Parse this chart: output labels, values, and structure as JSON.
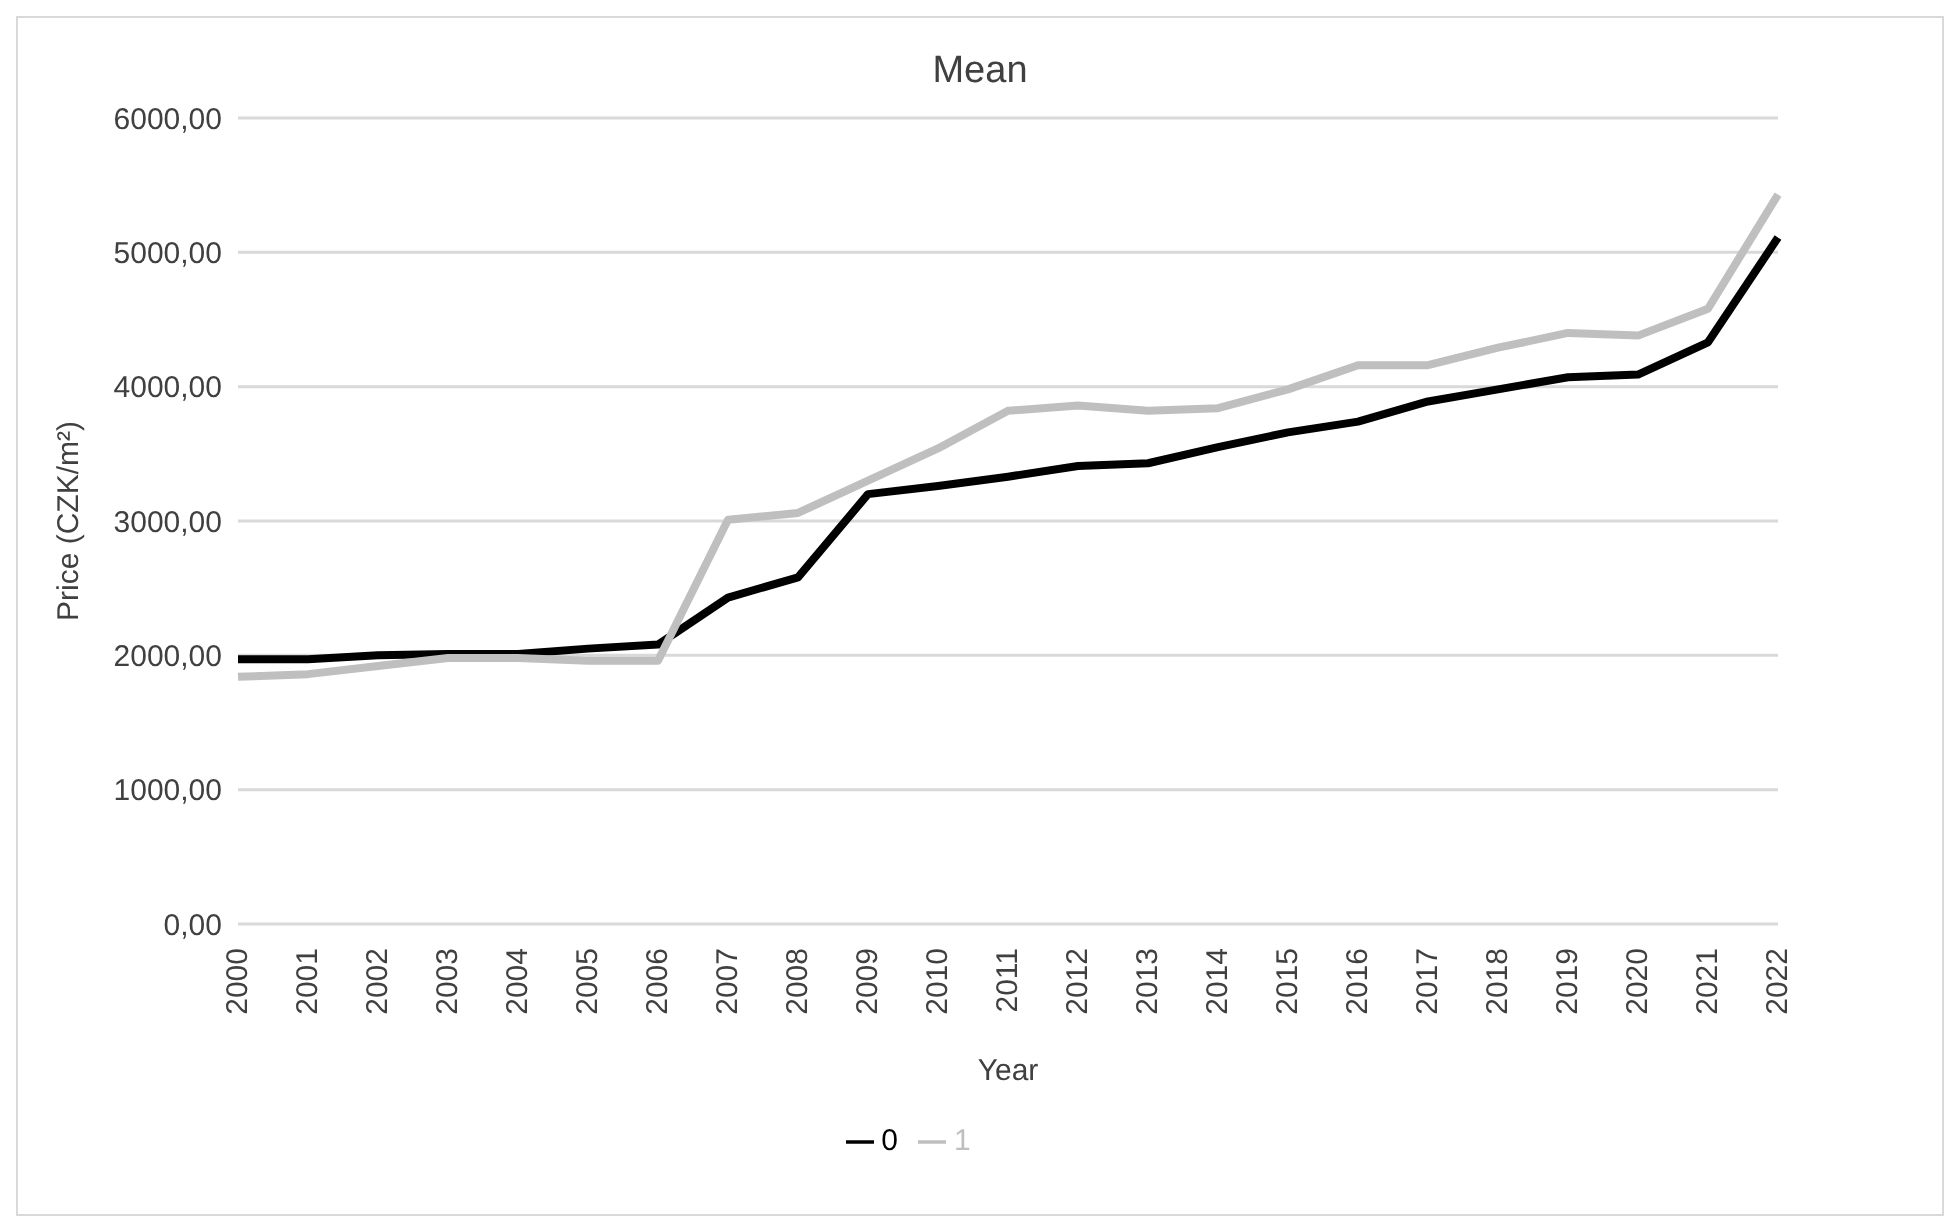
{
  "chart_data": {
    "type": "line",
    "title": "Mean",
    "xlabel": "Year",
    "ylabel": "Price (CZK/m²)",
    "categories": [
      "2000",
      "2001",
      "2002",
      "2003",
      "2004",
      "2005",
      "2006",
      "2007",
      "2008",
      "2009",
      "2010",
      "2011",
      "2012",
      "2013",
      "2014",
      "2015",
      "2016",
      "2017",
      "2018",
      "2019",
      "2020",
      "2021",
      "2022"
    ],
    "series": [
      {
        "name": "0",
        "color": "#000000",
        "values": [
          1970,
          1970,
          2000,
          2010,
          2010,
          2050,
          2080,
          2430,
          2580,
          3200,
          3260,
          3330,
          3410,
          3430,
          3550,
          3660,
          3740,
          3890,
          3980,
          4070,
          4090,
          4330,
          5110
        ]
      },
      {
        "name": "1",
        "color": "#bfbfbf",
        "values": [
          1840,
          1860,
          1920,
          1980,
          1980,
          1960,
          1960,
          3010,
          3060,
          3300,
          3540,
          3820,
          3860,
          3820,
          3840,
          3980,
          4160,
          4160,
          4290,
          4400,
          4380,
          4580,
          5430
        ]
      }
    ],
    "ylim": [
      0,
      6000
    ],
    "yticks": [
      {
        "value": 0,
        "label": "0,00"
      },
      {
        "value": 1000,
        "label": "1000,00"
      },
      {
        "value": 2000,
        "label": "2000,00"
      },
      {
        "value": 3000,
        "label": "3000,00"
      },
      {
        "value": 4000,
        "label": "4000,00"
      },
      {
        "value": 5000,
        "label": "5000,00"
      },
      {
        "value": 6000,
        "label": "6000,00"
      }
    ],
    "grid": "y",
    "legend": "bottom",
    "marker": "none",
    "line_style": "solid"
  }
}
